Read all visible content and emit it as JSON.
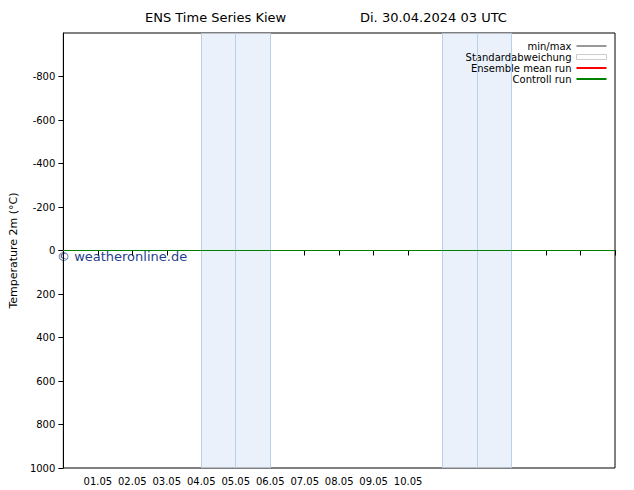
{
  "chart_data": {
    "type": "line",
    "title": "ENS Time Series Kiew",
    "subtitle": "Di. 30.04.2024 03 UTC",
    "y_label": "Temperature 2m (°C)",
    "annotation": "© weatheronline.de",
    "categories": [
      null,
      "01.05",
      "02.05",
      "03.05",
      "04.05",
      "05.05",
      "06.05",
      "07.05",
      "08.05",
      "09.05",
      "10.05",
      null,
      null,
      null,
      null,
      null,
      null
    ],
    "shaded_ranges": [
      [
        4,
        6
      ],
      [
        11,
        13
      ]
    ],
    "series": [
      {
        "name": "min/max",
        "color": "#999999",
        "values": [
          0,
          0,
          0,
          0,
          0,
          0,
          0,
          0,
          0,
          0,
          0,
          0,
          0,
          0,
          0,
          0,
          0
        ]
      },
      {
        "name": "Standardabweichung",
        "color": "#cccccc",
        "marker": "rect",
        "values": [
          0,
          0,
          0,
          0,
          0,
          0,
          0,
          0,
          0,
          0,
          0,
          0,
          0,
          0,
          0,
          0,
          0
        ]
      },
      {
        "name": "Ensemble mean run",
        "color": "#ff0000",
        "values": [
          0,
          0,
          0,
          0,
          0,
          0,
          0,
          0,
          0,
          0,
          0,
          0,
          0,
          0,
          0,
          0,
          0
        ]
      },
      {
        "name": "Controll run",
        "color": "#008000",
        "values": [
          0,
          0,
          0,
          0,
          0,
          0,
          0,
          0,
          0,
          0,
          0,
          0,
          0,
          0,
          0,
          0,
          0
        ]
      }
    ],
    "ylim": [
      1000,
      -1000
    ],
    "yticks": [
      -800,
      -600,
      -400,
      -200,
      0,
      200,
      400,
      600,
      800,
      1000
    ],
    "grid": false,
    "legend": "top-right"
  }
}
